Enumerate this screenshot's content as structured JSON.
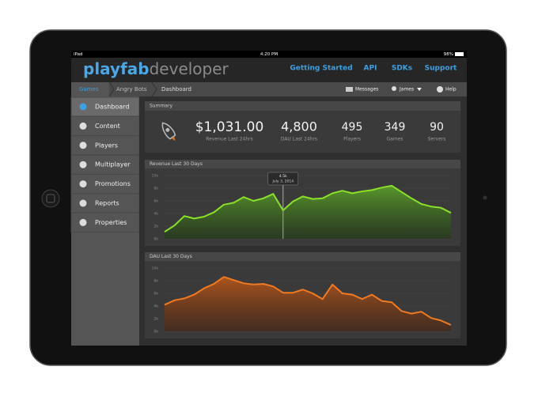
{
  "status_bar": {
    "device": "iPad",
    "time": "4:20 PM",
    "battery": "98%"
  },
  "header": {
    "logo_play": "playfab",
    "logo_dev": "developer",
    "nav": [
      "Getting Started",
      "API",
      "SDKs",
      "Support"
    ]
  },
  "breadcrumb": [
    "Games",
    "Angry Bots",
    "Dashboard"
  ],
  "user_menu": [
    "Messages",
    "James",
    "Help"
  ],
  "sidebar": [
    "Dashboard",
    "Content",
    "Players",
    "Multiplayer",
    "Promotions",
    "Reports",
    "Properties"
  ],
  "summary": {
    "title": "Summary",
    "stats": [
      {
        "value": "$1,031.00",
        "label": "Revenue Last 24hrs"
      },
      {
        "value": "4,800",
        "label": "DAU Last 24hrs"
      },
      {
        "value": "495",
        "label": "Players"
      },
      {
        "value": "349",
        "label": "Games"
      },
      {
        "value": "90",
        "label": "Servers"
      }
    ]
  },
  "charts": [
    {
      "type": "area",
      "title": "Revenue Last 30 Days",
      "color": "#8be02a",
      "values": [
        1100,
        2100,
        3600,
        3200,
        3500,
        4200,
        5400,
        5700,
        6600,
        6000,
        6400,
        7100,
        4500,
        5900,
        6700,
        6300,
        6400,
        7200,
        7600,
        7200,
        7500,
        7700,
        8100,
        8400,
        7400,
        6400,
        5500,
        5100,
        4900,
        4100
      ],
      "ylim": [
        0,
        10000
      ],
      "yticks": [
        {
          "value": 0,
          "label": "0k"
        },
        {
          "value": 2000,
          "label": "2k"
        },
        {
          "value": 4000,
          "label": "4k"
        },
        {
          "value": 6000,
          "label": "6k"
        },
        {
          "value": 8000,
          "label": "8k"
        },
        {
          "value": 10000,
          "label": "10k"
        }
      ],
      "tooltip": {
        "value": "4.5k",
        "date": "July 3, 2014"
      }
    },
    {
      "type": "area",
      "title": "DAU Last 30 Days",
      "color": "#f07a22",
      "values": [
        4200,
        4900,
        5200,
        5800,
        6800,
        7500,
        8600,
        8100,
        7600,
        7400,
        7500,
        7100,
        6100,
        6100,
        6600,
        6000,
        5100,
        7400,
        6000,
        5800,
        5100,
        5800,
        4800,
        4600,
        3200,
        2800,
        3100,
        2100,
        1700,
        1000
      ],
      "ylim": [
        0,
        10000
      ],
      "yticks": [
        {
          "value": 0,
          "label": "0k"
        },
        {
          "value": 2000,
          "label": "2k"
        },
        {
          "value": 4000,
          "label": "4k"
        },
        {
          "value": 6000,
          "label": "6k"
        },
        {
          "value": 8000,
          "label": "8k"
        },
        {
          "value": 10000,
          "label": "10k"
        }
      ]
    }
  ]
}
